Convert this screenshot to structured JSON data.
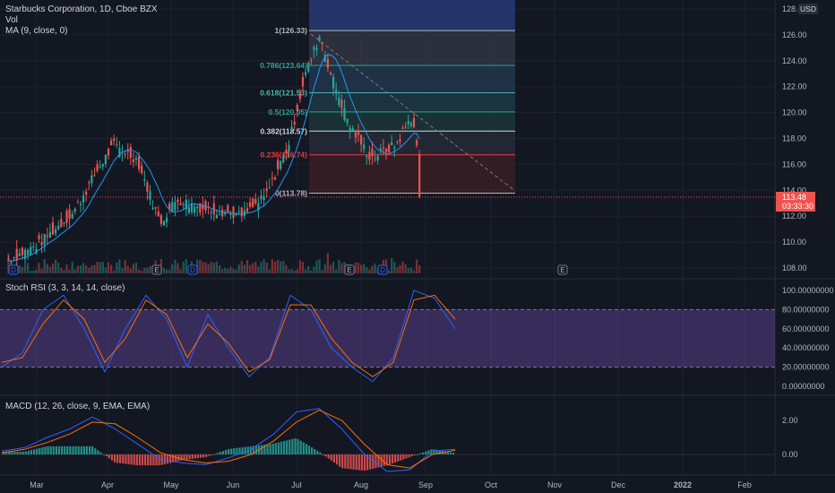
{
  "header": {
    "symbol_line": "Starbucks Corporation, 1D, Cboe BZX",
    "vol_label": "Vol",
    "ma_label": "MA (9, close, 0)",
    "currency": "USD"
  },
  "price_axis": {
    "ticks": [
      "128.00",
      "126.00",
      "124.00",
      "122.00",
      "120.00",
      "118.00",
      "116.00",
      "114.00",
      "112.00",
      "110.00",
      "108.00"
    ],
    "current_price": "113.48",
    "countdown": "03:33:30"
  },
  "time_axis": {
    "labels": [
      "Mar",
      "Apr",
      "May",
      "Jun",
      "Jul",
      "Aug",
      "Sep",
      "Oct",
      "Nov",
      "Dec",
      "2022",
      "Feb"
    ]
  },
  "events": [
    "D",
    "E",
    "D",
    "E",
    "D",
    "E"
  ],
  "fibonacci": {
    "levels": [
      {
        "label": "1(126.33)",
        "value": 126.33,
        "color": "#b2b5be"
      },
      {
        "label": "0.786(123.64)",
        "value": 123.64,
        "color": "#26a69a"
      },
      {
        "label": "0.618(121.53)",
        "value": 121.53,
        "color": "#4db6ac"
      },
      {
        "label": "0.5(120.05)",
        "value": 120.05,
        "color": "#26a69a"
      },
      {
        "label": "0.382(118.57)",
        "value": 118.57,
        "color": "#d1d4dc"
      },
      {
        "label": "0.236(116.74)",
        "value": 116.74,
        "color": "#f23645"
      },
      {
        "label": "0(113.78)",
        "value": 113.78,
        "color": "#b2b5be"
      }
    ]
  },
  "stoch_rsi": {
    "label": "Stoch RSI (3, 3, 14, 14, close)",
    "ticks": [
      "100.00000000",
      "80.00000000",
      "60.00000000",
      "40.00000000",
      "20.00000000",
      "0.00000000"
    ]
  },
  "macd": {
    "label": "MACD (12, 26, close, 9, EMA, EMA)",
    "ticks": [
      "2.00",
      "0.00"
    ]
  },
  "colors": {
    "up": "#26a69a",
    "down": "#ef5350",
    "ma": "#2196f3",
    "stoch_k": "#2962ff",
    "stoch_d": "#ff6d00",
    "macd_line": "#2962ff",
    "signal_line": "#ff6d00",
    "band": "#7e57c2"
  },
  "chart_data": [
    {
      "type": "candlestick",
      "title": "Starbucks Corporation, 1D, Cboe BZX",
      "ylim": [
        107.5,
        128.5
      ],
      "x_range": [
        "2021-02-25",
        "2022-02-28"
      ],
      "last_price": 113.48,
      "ma_period": 9,
      "series": [
        {
          "name": "close",
          "dates": [
            "2021-03-01",
            "2021-03-15",
            "2021-04-01",
            "2021-04-12",
            "2021-04-20",
            "2021-05-01",
            "2021-05-12",
            "2021-05-20",
            "2021-06-01",
            "2021-06-10",
            "2021-06-20",
            "2021-07-01",
            "2021-07-12",
            "2021-07-20",
            "2021-07-27",
            "2021-08-01",
            "2021-08-10",
            "2021-08-20",
            "2021-09-01",
            "2021-09-08",
            "2021-09-10",
            "2021-09-13"
          ],
          "values": [
            108.6,
            109.8,
            112.3,
            115.5,
            117.5,
            116.4,
            111.5,
            113.3,
            112.6,
            112.4,
            112.0,
            113.5,
            117.5,
            123.0,
            126.0,
            123.0,
            119.0,
            116.5,
            117.5,
            119.6,
            118.8,
            113.5
          ]
        }
      ]
    },
    {
      "type": "line",
      "title": "Stoch RSI (3, 3, 14, 14, close)",
      "ylim": [
        0,
        100
      ],
      "bands": [
        20,
        80
      ],
      "series": [
        {
          "name": "K",
          "values": [
            20,
            35,
            80,
            95,
            60,
            15,
            60,
            95,
            70,
            20,
            75,
            40,
            10,
            30,
            95,
            80,
            40,
            20,
            5,
            30,
            100,
            92,
            60
          ]
        },
        {
          "name": "D",
          "values": [
            25,
            30,
            65,
            90,
            70,
            25,
            50,
            90,
            75,
            30,
            65,
            45,
            15,
            28,
            85,
            85,
            50,
            25,
            10,
            25,
            90,
            95,
            70
          ]
        }
      ]
    },
    {
      "type": "line",
      "title": "MACD (12, 26, close, 9, EMA, EMA)",
      "ylim": [
        -1.2,
        2.8
      ],
      "series": [
        {
          "name": "MACD",
          "values": [
            0.2,
            0.4,
            1.0,
            1.5,
            2.2,
            1.5,
            0.6,
            -0.3,
            -0.5,
            -0.6,
            -0.2,
            0.3,
            1.2,
            2.5,
            2.7,
            1.5,
            0.0,
            -1.0,
            -0.9,
            0.2,
            0.3
          ]
        },
        {
          "name": "Signal",
          "values": [
            0.1,
            0.3,
            0.7,
            1.2,
            1.9,
            1.8,
            1.0,
            0.1,
            -0.3,
            -0.5,
            -0.4,
            0.0,
            0.8,
            1.9,
            2.6,
            2.0,
            0.6,
            -0.6,
            -0.8,
            0.0,
            0.25
          ]
        }
      ]
    }
  ]
}
